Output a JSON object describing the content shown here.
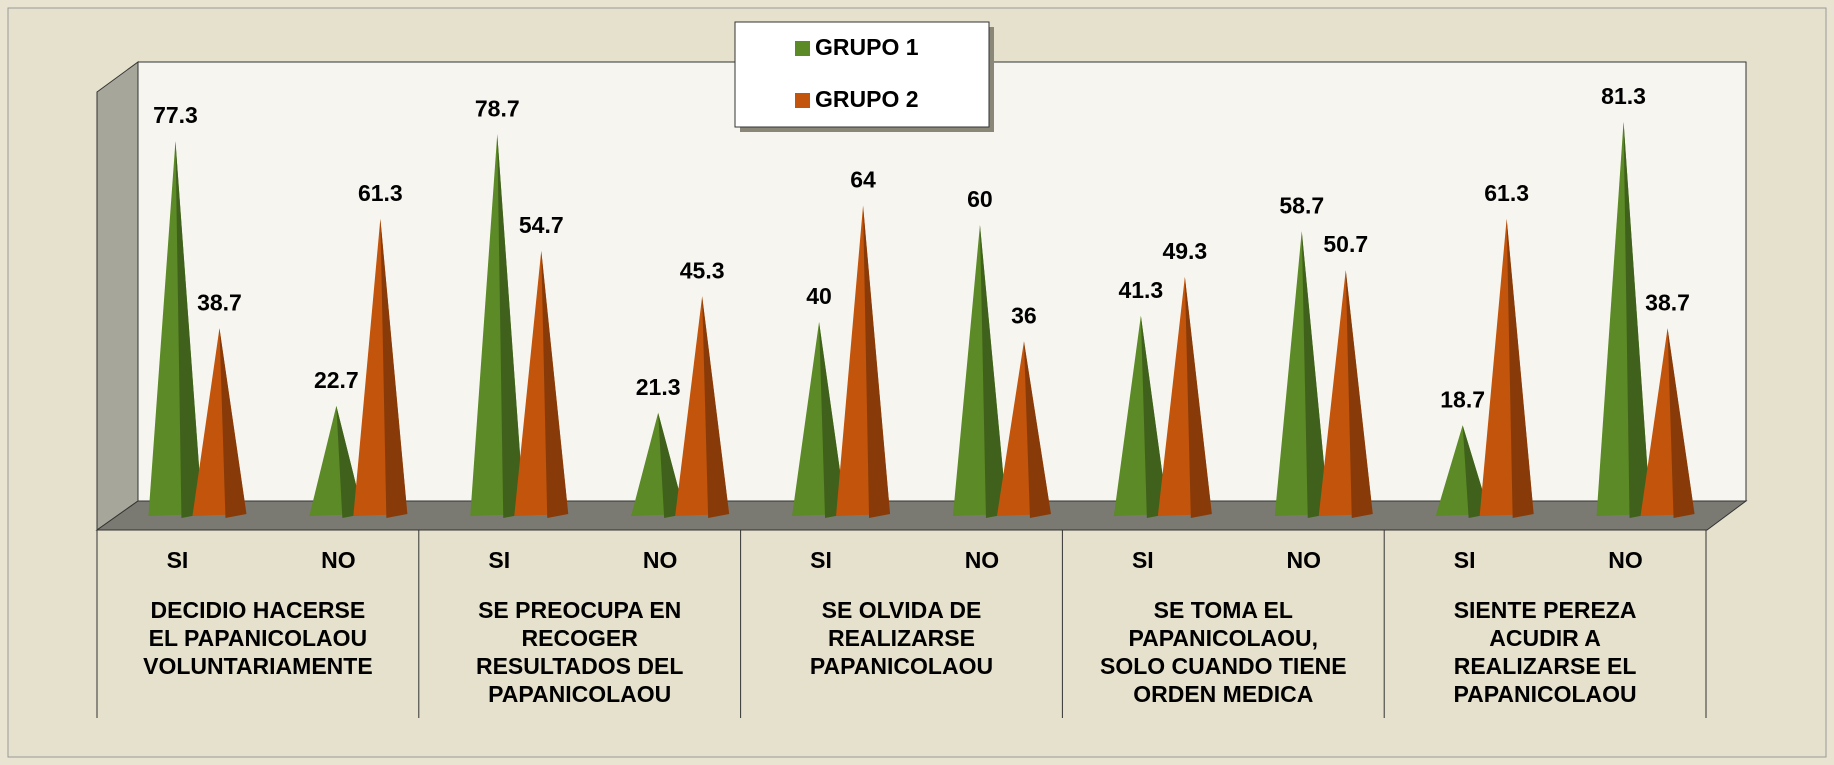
{
  "chart_data": {
    "type": "pyramid",
    "categories": [
      "SI",
      "NO",
      "SI",
      "NO",
      "SI",
      "NO",
      "SI",
      "NO",
      "SI",
      "NO"
    ],
    "groups": [
      "DECIDIO HACERSE EL PAPANICOLAOU VOLUNTARIAMENTE",
      "SE PREOCUPA EN RECOGER RESULTADOS DEL PAPANICOLAOU",
      "SE OLVIDA DE REALIZARSE PAPANICOLAOU",
      "SE TOMA EL PAPANICOLAOU, SOLO CUANDO TIENE ORDEN MEDICA",
      "SIENTE PEREZA ACUDIR A REALIZARSE EL PAPANICOLAOU"
    ],
    "series": [
      {
        "name": "GRUPO 1",
        "color": "#5b8a26",
        "values": [
          77.3,
          22.7,
          78.7,
          21.3,
          40,
          60,
          41.3,
          58.7,
          18.7,
          81.3
        ]
      },
      {
        "name": "GRUPO 2",
        "color": "#c2540c",
        "values": [
          38.7,
          61.3,
          54.7,
          45.3,
          64,
          36,
          49.3,
          50.7,
          61.3,
          38.7
        ]
      }
    ],
    "legend": "top-center"
  }
}
